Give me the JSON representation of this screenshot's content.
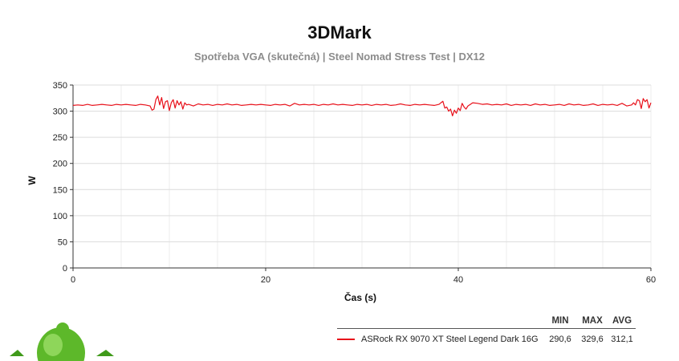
{
  "chart_data": {
    "type": "line",
    "title": "3DMark",
    "subtitle": "Spotřeba VGA (skutečná) | Steel Nomad Stress Test | DX12",
    "xlabel": "Čas (s)",
    "ylabel": "W",
    "xlim": [
      0,
      60
    ],
    "ylim": [
      0,
      350
    ],
    "xticks": [
      0,
      20,
      40,
      60
    ],
    "yticks": [
      0,
      50,
      100,
      150,
      200,
      250,
      300,
      350
    ],
    "grid": true,
    "legend_placement": "bottom-right",
    "legend_headers": [
      "MIN",
      "MAX",
      "AVG"
    ],
    "series": [
      {
        "name": "ASRock RX 9070 XT Steel Legend Dark 16G",
        "color": "#e8101a",
        "min": "290,6",
        "max": "329,6",
        "avg": "312,1",
        "x": [
          0,
          0.5,
          1,
          1.5,
          2,
          2.5,
          3,
          3.5,
          4,
          4.5,
          5,
          5.5,
          6,
          6.5,
          7,
          7.5,
          8,
          8.2,
          8.4,
          8.6,
          8.8,
          9,
          9.2,
          9.4,
          9.6,
          9.8,
          10,
          10.2,
          10.4,
          10.6,
          10.8,
          11,
          11.2,
          11.4,
          11.6,
          11.8,
          12,
          12.5,
          13,
          13.5,
          14,
          14.5,
          15,
          15.5,
          16,
          16.5,
          17,
          17.5,
          18,
          18.5,
          19,
          19.5,
          20,
          20.5,
          21,
          21.5,
          22,
          22.5,
          23,
          23.5,
          24,
          24.5,
          25,
          25.5,
          26,
          26.5,
          27,
          27.5,
          28,
          28.5,
          29,
          29.5,
          30,
          30.5,
          31,
          31.5,
          32,
          32.5,
          33,
          33.5,
          34,
          34.5,
          35,
          35.5,
          36,
          36.5,
          37,
          37.5,
          38,
          38.2,
          38.4,
          38.6,
          38.8,
          39,
          39.2,
          39.4,
          39.6,
          39.8,
          40,
          40.2,
          40.4,
          40.6,
          40.8,
          41,
          41.5,
          42,
          42.5,
          43,
          43.5,
          44,
          44.5,
          45,
          45.5,
          46,
          46.5,
          47,
          47.5,
          48,
          48.5,
          49,
          49.5,
          50,
          50.5,
          51,
          51.5,
          52,
          52.5,
          53,
          53.5,
          54,
          54.5,
          55,
          55.5,
          56,
          56.5,
          57,
          57.5,
          58,
          58.2,
          58.4,
          58.6,
          58.8,
          59,
          59.2,
          59.4,
          59.6,
          59.8,
          60
        ],
        "y": [
          311,
          312,
          311,
          313,
          311,
          312,
          313,
          312,
          311,
          313,
          312,
          313,
          312,
          311,
          313,
          312,
          310,
          302,
          304,
          322,
          329,
          312,
          326,
          305,
          318,
          320,
          301,
          316,
          322,
          306,
          320,
          312,
          318,
          304,
          316,
          312,
          313,
          310,
          314,
          312,
          313,
          311,
          313,
          312,
          314,
          312,
          313,
          311,
          312,
          313,
          312,
          313,
          312,
          311,
          313,
          312,
          313,
          310,
          315,
          312,
          313,
          312,
          313,
          311,
          313,
          312,
          314,
          312,
          313,
          312,
          311,
          313,
          312,
          313,
          311,
          313,
          312,
          313,
          311,
          312,
          314,
          312,
          311,
          313,
          312,
          313,
          312,
          311,
          313,
          316,
          319,
          306,
          308,
          300,
          304,
          291,
          302,
          296,
          306,
          301,
          315,
          308,
          304,
          310,
          316,
          315,
          313,
          314,
          312,
          313,
          312,
          314,
          311,
          313,
          312,
          313,
          311,
          314,
          312,
          313,
          311,
          312,
          313,
          311,
          314,
          312,
          313,
          311,
          312,
          314,
          311,
          313,
          312,
          313,
          311,
          315,
          310,
          312,
          316,
          312,
          322,
          320,
          305,
          324,
          318,
          322,
          306,
          316
        ]
      }
    ]
  }
}
